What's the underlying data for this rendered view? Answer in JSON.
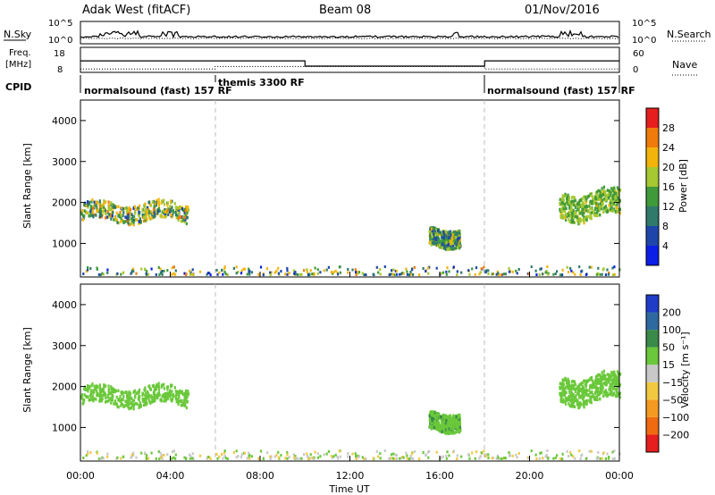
{
  "header": {
    "radar": "Adak West (fitACF)",
    "beam": "Beam 08",
    "date": "01/Nov/2016"
  },
  "sky_panel": {
    "left_label": "N.Sky",
    "right_label": "N.Search",
    "left_ticks": [
      "10^5",
      "10^0"
    ],
    "right_ticks": [
      "10^5",
      "10^0"
    ]
  },
  "freq_panel": {
    "left_label_line1": "Freq.",
    "left_label_line2": "[MHz]",
    "right_label": "Nave",
    "left_ticks": [
      "18",
      "8"
    ],
    "right_ticks": [
      "60",
      "0"
    ]
  },
  "cpid": {
    "label": "CPID",
    "segments": [
      {
        "name": "normalsound (fast) 157 RF",
        "start_h": 0,
        "end_h": 6
      },
      {
        "name": "themis 3300 RF",
        "start_h": 6,
        "end_h": 18
      },
      {
        "name": "normalsound (fast) 157 RF",
        "start_h": 18,
        "end_h": 24
      }
    ]
  },
  "x_axis": {
    "label": "Time UT",
    "ticks": [
      "00:00",
      "04:00",
      "08:00",
      "12:00",
      "16:00",
      "20:00",
      "00:00"
    ],
    "range_h": [
      0,
      24
    ]
  },
  "power_panel": {
    "ylabel": "Slant Range [km]",
    "yticks": [
      "1000",
      "2000",
      "3000",
      "4000"
    ],
    "colorbar_label": "Power [dB]",
    "colorbar_ticks": [
      "4",
      "8",
      "12",
      "16",
      "20",
      "24",
      "28"
    ],
    "colors": [
      "#0a1ee6",
      "#1e46aa",
      "#2f7a6a",
      "#3f9a3a",
      "#a6c830",
      "#f2b40a",
      "#f07a0a",
      "#e61e1e"
    ]
  },
  "velocity_panel": {
    "ylabel": "Slant Range [km]",
    "yticks": [
      "1000",
      "2000",
      "3000",
      "4000"
    ],
    "colorbar_label": "Velocity [m s⁻¹]",
    "colorbar_ticks": [
      "200",
      "100",
      "50",
      "15",
      "−15",
      "−50",
      "−100",
      "−200"
    ],
    "colors": [
      "#1e3cc8",
      "#2e6aa0",
      "#3a8a4a",
      "#6ac83a",
      "#c8c8c8",
      "#f2c840",
      "#f59a20",
      "#f06a10",
      "#e61e1e"
    ]
  },
  "chart_data": {
    "type": "heatmap",
    "title": "Adak West (fitACF)",
    "xlabel": "Time UT",
    "ylabel": "Slant Range [km]",
    "xlim_hours": [
      0,
      24
    ],
    "ylim_km": [
      180,
      4500
    ],
    "power_scale_db": [
      0,
      30
    ],
    "velocity_scale_ms": [
      -200,
      200
    ],
    "power_regions": [
      {
        "start_h": 0.0,
        "end_h": 4.8,
        "range_km": [
          1450,
          2000
        ],
        "mean_power_db": 12,
        "peak_power_db": 26
      },
      {
        "start_h": 15.5,
        "end_h": 16.9,
        "range_km": [
          850,
          1400
        ],
        "mean_power_db": 10,
        "peak_power_db": 22
      },
      {
        "start_h": 21.3,
        "end_h": 24.0,
        "range_km": [
          1500,
          2300
        ],
        "mean_power_db": 14,
        "peak_power_db": 20
      },
      {
        "start_h": 0.0,
        "end_h": 24.0,
        "range_km": [
          200,
          400
        ],
        "mean_power_db": 10,
        "peak_power_db": 26
      }
    ],
    "velocity_regions": [
      {
        "start_h": 0.0,
        "end_h": 4.8,
        "range_km": [
          1450,
          2000
        ],
        "mean_velocity_ms": 0
      },
      {
        "start_h": 15.5,
        "end_h": 16.9,
        "range_km": [
          850,
          1400
        ],
        "mean_velocity_ms": 5
      },
      {
        "start_h": 21.3,
        "end_h": 24.0,
        "range_km": [
          1500,
          2300
        ],
        "mean_velocity_ms": 0
      },
      {
        "start_h": 0.0,
        "end_h": 24.0,
        "range_km": [
          200,
          400
        ],
        "mean_velocity_ms": -30
      }
    ],
    "frequency_mhz": [
      {
        "start_h": 0,
        "end_h": 10,
        "value": 12.6
      },
      {
        "start_h": 10,
        "end_h": 18,
        "value": 10.5
      },
      {
        "start_h": 18,
        "end_h": 24,
        "value": 12.6
      }
    ],
    "nave": [
      {
        "start_h": 0,
        "end_h": 6,
        "value": 8
      },
      {
        "start_h": 6,
        "end_h": 18,
        "value": 14
      },
      {
        "start_h": 18,
        "end_h": 24,
        "value": 8
      }
    ]
  }
}
